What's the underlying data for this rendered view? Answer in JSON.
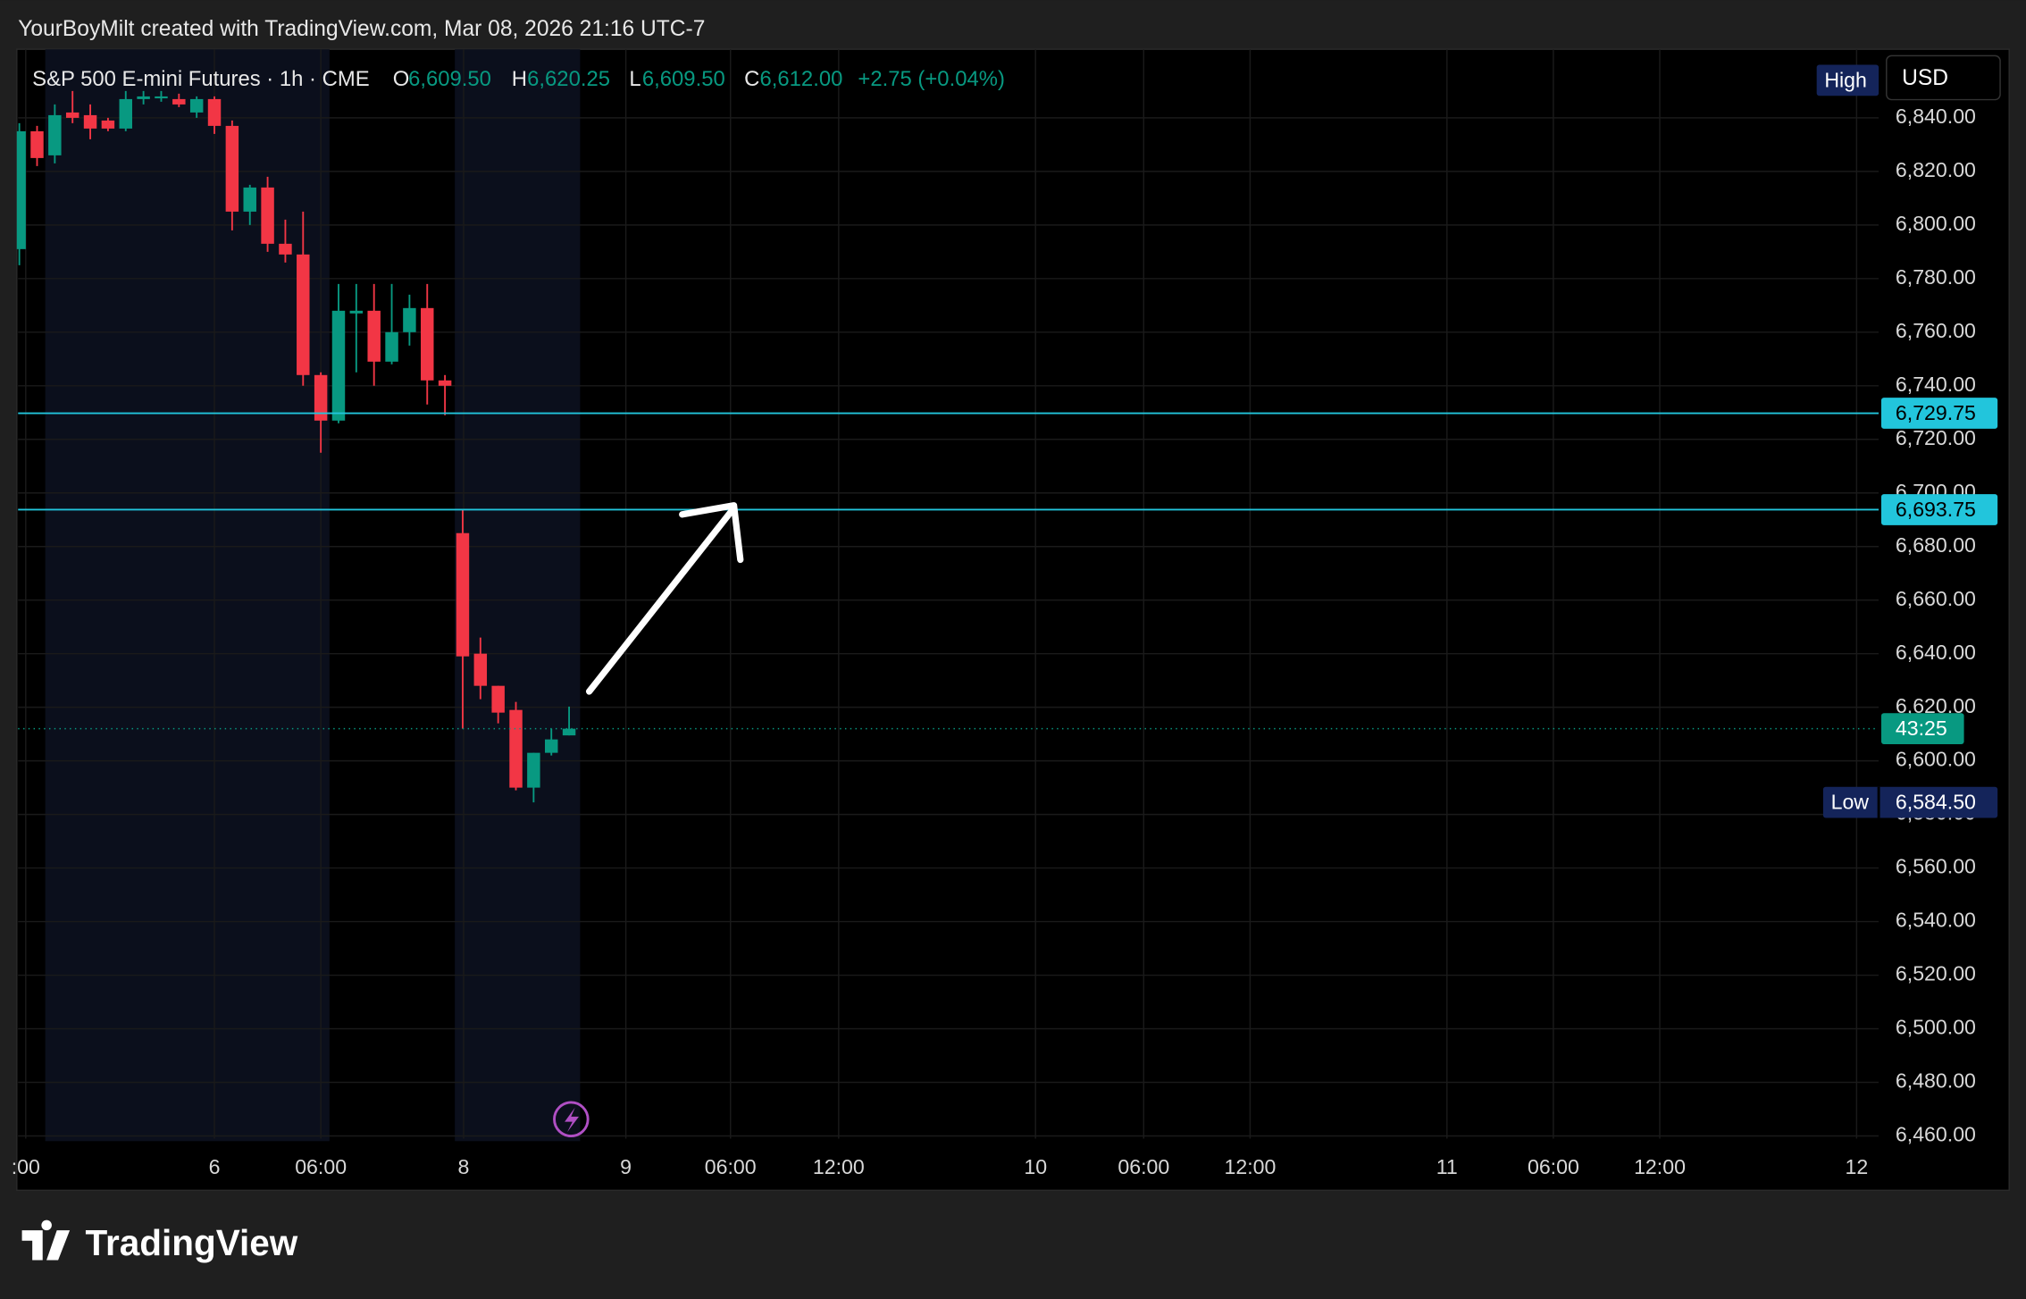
{
  "header": {
    "caption": "YourBoyMilt created with TradingView.com, Mar 08, 2026 21:16 UTC-7"
  },
  "footer": {
    "logo": "TradingView"
  },
  "chart_data": {
    "type": "candlestick",
    "title": "S&P 500 E-mini Futures · 1h · CME",
    "legend": {
      "o": "O",
      "o_value": "6,609.50",
      "h": "H",
      "h_value": "6,620.25",
      "l": "L",
      "l_value": "6,609.50",
      "c": "C",
      "c_value": "6,612.00",
      "change": "+2.75 (+0.04%)"
    },
    "currency": "USD",
    "up_color": "#089981",
    "down_color": "#f23645",
    "open": [
      6791,
      6835,
      6826,
      6842,
      6841,
      6839,
      6836,
      6847,
      6848,
      6847,
      6842,
      6847,
      6837,
      6805,
      6814,
      6793,
      6789,
      6744,
      6727,
      6767,
      6768,
      6749,
      6760,
      6769,
      6742,
      6685,
      6640,
      6628,
      6619,
      6590,
      6603,
      6609.5
    ],
    "high": [
      6838,
      6837,
      6845,
      6850,
      6845,
      6840,
      6850,
      6850,
      6850,
      6849,
      6848,
      6848,
      6839,
      6815,
      6818,
      6802,
      6805,
      6745,
      6778,
      6778,
      6778,
      6778,
      6774,
      6778,
      6744,
      6693.75,
      6646,
      6628,
      6622,
      6603,
      6612,
      6620.25
    ],
    "low": [
      6785,
      6822,
      6823,
      6838,
      6832,
      6835,
      6835,
      6845,
      6846,
      6844,
      6840,
      6834,
      6798,
      6800,
      6790,
      6786,
      6740,
      6715,
      6726,
      6745,
      6740,
      6748,
      6755,
      6733,
      6729,
      6612,
      6623,
      6614,
      6589,
      6584.5,
      6602,
      6609.5
    ],
    "close": [
      6835,
      6825,
      6841,
      6840,
      6836,
      6836,
      6847,
      6848,
      6848,
      6845,
      6847,
      6837,
      6805,
      6814,
      6793,
      6789,
      6744,
      6727,
      6768,
      6768,
      6749,
      6760,
      6769,
      6742,
      6740,
      6639,
      6628,
      6618,
      6590,
      6603,
      6608,
      6612
    ],
    "xlim": [
      -0.07,
      104.7
    ],
    "xticks": [
      {
        "value": 0.36,
        "label": ":00"
      },
      {
        "value": 11,
        "label": "6"
      },
      {
        "value": 17,
        "label": "06:00"
      },
      {
        "value": 25.05,
        "label": "8"
      },
      {
        "value": 34.2,
        "label": "9"
      },
      {
        "value": 40.1,
        "label": "06:00"
      },
      {
        "value": 46.2,
        "label": "12:00"
      },
      {
        "value": 57.3,
        "label": "10"
      },
      {
        "value": 63.4,
        "label": "06:00"
      },
      {
        "value": 69.4,
        "label": "12:00"
      },
      {
        "value": 80.5,
        "label": "11"
      },
      {
        "value": 86.5,
        "label": "06:00"
      },
      {
        "value": 92.5,
        "label": "12:00"
      },
      {
        "value": 103.6,
        "label": "12"
      }
    ],
    "ylim": [
      6459,
      6865.6
    ],
    "yticks": [
      {
        "value": 6460,
        "label": "6,460.00"
      },
      {
        "value": 6480,
        "label": "6,480.00"
      },
      {
        "value": 6500,
        "label": "6,500.00"
      },
      {
        "value": 6520,
        "label": "6,520.00"
      },
      {
        "value": 6540,
        "label": "6,540.00"
      },
      {
        "value": 6560,
        "label": "6,560.00"
      },
      {
        "value": 6580,
        "label": "6,580.00"
      },
      {
        "value": 6600,
        "label": "6,600.00"
      },
      {
        "value": 6620,
        "label": "6,620.00"
      },
      {
        "value": 6640,
        "label": "6,640.00"
      },
      {
        "value": 6660,
        "label": "6,660.00"
      },
      {
        "value": 6680,
        "label": "6,680.00"
      },
      {
        "value": 6700,
        "label": "6,700.00"
      },
      {
        "value": 6720,
        "label": "6,720.00"
      },
      {
        "value": 6740,
        "label": "6,740.00"
      },
      {
        "value": 6760,
        "label": "6,760.00"
      },
      {
        "value": 6780,
        "label": "6,780.00"
      },
      {
        "value": 6800,
        "label": "6,800.00"
      },
      {
        "value": 6820,
        "label": "6,820.00"
      },
      {
        "value": 6840,
        "label": "6,840.00"
      }
    ],
    "grid": true,
    "levels": [
      {
        "value": 6729.75,
        "label": "6,729.75",
        "color": "#22c5dc"
      },
      {
        "value": 6693.75,
        "label": "6,693.75",
        "color": "#22c5dc"
      }
    ],
    "countdown": "43:25",
    "high_marker": {
      "label": "High"
    },
    "low_marker": {
      "label": "Low",
      "value": 6584.5,
      "value_label": "6,584.50"
    }
  }
}
